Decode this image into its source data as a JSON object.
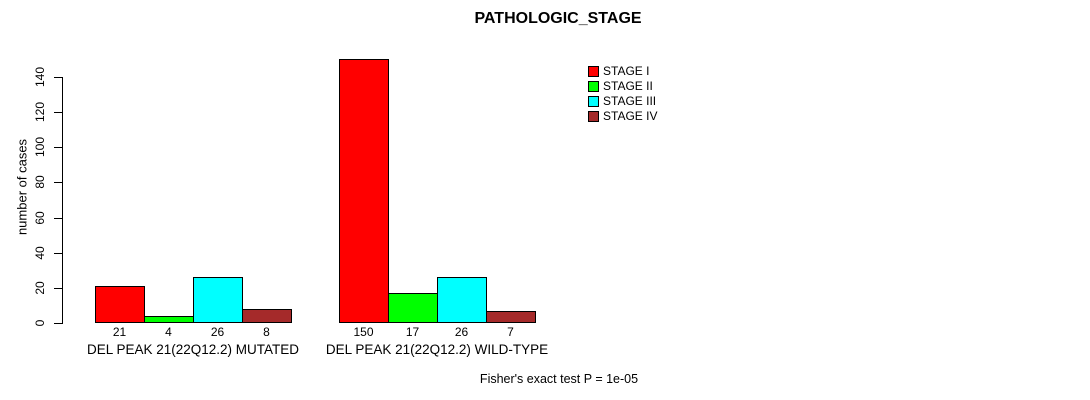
{
  "title": "PATHOLOGIC_STAGE",
  "footer": "Fisher's exact test P = 1e-05",
  "chart_data": {
    "type": "bar",
    "title": "PATHOLOGIC_STAGE",
    "ylabel": "number of cases",
    "xlabel": "",
    "ylim": [
      0,
      140
    ],
    "yticks": [
      0,
      20,
      40,
      60,
      80,
      100,
      120,
      140
    ],
    "grid": false,
    "legend_position": "top-right",
    "series": [
      {
        "name": "STAGE I",
        "color": "#FF0000"
      },
      {
        "name": "STAGE II",
        "color": "#00FF00"
      },
      {
        "name": "STAGE III",
        "color": "#00FFFF"
      },
      {
        "name": "STAGE IV",
        "color": "#A52A2A"
      }
    ],
    "groups": [
      {
        "label": "DEL PEAK 21(22Q12.2) MUTATED",
        "values": [
          21,
          4,
          26,
          8
        ]
      },
      {
        "label": "DEL PEAK 21(22Q12.2) WILD-TYPE",
        "values": [
          150,
          17,
          26,
          7
        ]
      }
    ],
    "bar_value_labels_shown": true,
    "annotation": "Fisher's exact test P = 1e-05"
  }
}
